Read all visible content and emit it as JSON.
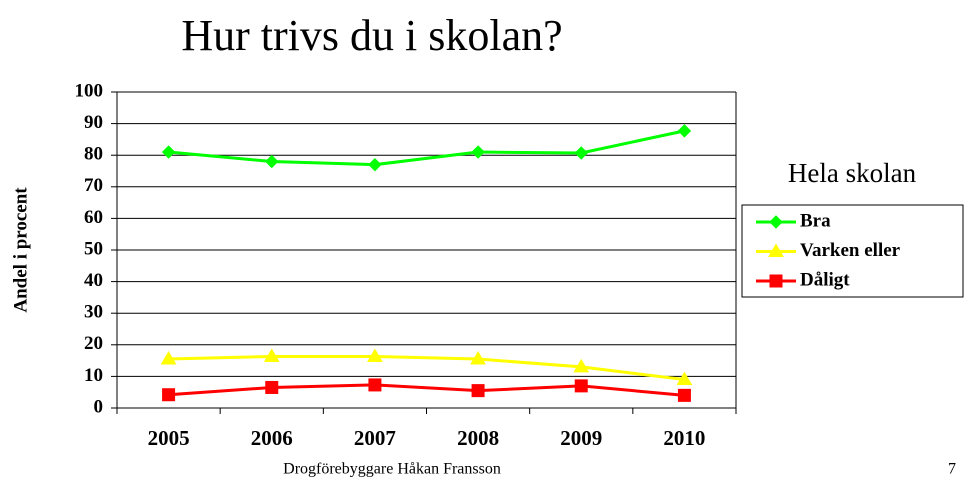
{
  "chart_data": {
    "type": "line",
    "title": "Hur trivs du i skolan?",
    "y_label": "Andel i procent",
    "categories": [
      "2005",
      "2006",
      "2007",
      "2008",
      "2009",
      "2010"
    ],
    "series": [
      {
        "name": "Bra",
        "color": "#00ff00",
        "marker": "diamond",
        "values": [
          81,
          78,
          77,
          81,
          80.7,
          87.7
        ]
      },
      {
        "name": "Varken eller",
        "color": "#ffff00",
        "marker": "triangle",
        "values": [
          15.5,
          16.3,
          16.3,
          15.5,
          13,
          9
        ]
      },
      {
        "name": "Dåligt",
        "color": "#ff0000",
        "marker": "square",
        "values": [
          4.2,
          6.5,
          7.3,
          5.5,
          7,
          4
        ]
      }
    ],
    "ylim": [
      0,
      100
    ],
    "yticks": [
      0,
      10,
      20,
      30,
      40,
      50,
      60,
      70,
      80,
      90,
      100
    ],
    "grid": true,
    "legend_title": "Hela skolan",
    "legend_position": "right"
  },
  "footer": {
    "author": "Drogförebyggare Håkan Fransson",
    "page": "7"
  }
}
